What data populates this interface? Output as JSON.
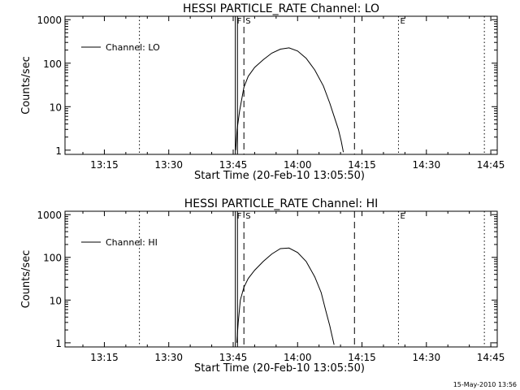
{
  "footer_timestamp": "15-May-2010 13:56",
  "chart_data": [
    {
      "type": "line",
      "title": "HESSI PARTICLE_RATE Channel: LO",
      "xlabel": "Start Time (20-Feb-10 13:05:50)",
      "ylabel": "Counts/sec",
      "xlim": [
        "13:05:50",
        "14:46:30"
      ],
      "ylim": [
        0.8,
        1200
      ],
      "y_scale": "log",
      "x_ticks": [
        {
          "label": "13:15",
          "t": "13:15:00"
        },
        {
          "label": "13:30",
          "t": "13:30:00"
        },
        {
          "label": "13:45",
          "t": "13:45:00"
        },
        {
          "label": "14:00",
          "t": "14:00:00"
        },
        {
          "label": "14:15",
          "t": "14:15:00"
        },
        {
          "label": "14:30",
          "t": "14:30:00"
        },
        {
          "label": "14:45",
          "t": "14:45:00"
        }
      ],
      "y_ticks": [
        {
          "label": "1",
          "v": 1
        },
        {
          "label": "10",
          "v": 10
        },
        {
          "label": "100",
          "v": 100
        },
        {
          "label": "1000",
          "v": 1000
        }
      ],
      "series": [
        {
          "name": "Channel: LO",
          "x": [
            "13:45:35",
            "13:45:55",
            "13:46:30",
            "13:47:30",
            "13:48:30",
            "13:50:00",
            "13:52:00",
            "13:54:00",
            "13:56:00",
            "13:58:00",
            "14:00:00",
            "14:02:00",
            "14:04:00",
            "14:06:00",
            "14:07:30",
            "14:08:30",
            "14:09:30",
            "14:10:10",
            "14:10:30",
            "14:10:40"
          ],
          "y": [
            1,
            3,
            8,
            28,
            50,
            80,
            120,
            170,
            210,
            225,
            190,
            130,
            70,
            30,
            12,
            6,
            3,
            1.6,
            1.1,
            0.9
          ]
        }
      ],
      "vlines": [
        {
          "label": "F",
          "t": "13:45:30",
          "style": "solid"
        },
        {
          "label": "",
          "t": "13:46:00",
          "style": "solid"
        },
        {
          "label": "S",
          "t": "13:47:30",
          "style": "dashed"
        },
        {
          "label": "",
          "t": "14:13:15",
          "style": "dashed"
        },
        {
          "label": "E",
          "t": "14:23:30",
          "style": "dotted"
        },
        {
          "label": "",
          "t": "13:23:10",
          "style": "dotted"
        },
        {
          "label": "",
          "t": "14:43:30",
          "style": "dotted"
        }
      ],
      "legend_position": "top-left"
    },
    {
      "type": "line",
      "title": "HESSI PARTICLE_RATE Channel: HI",
      "xlabel": "Start Time (20-Feb-10 13:05:50)",
      "ylabel": "Counts/sec",
      "xlim": [
        "13:05:50",
        "14:46:30"
      ],
      "ylim": [
        0.8,
        1200
      ],
      "y_scale": "log",
      "x_ticks": [
        {
          "label": "13:15",
          "t": "13:15:00"
        },
        {
          "label": "13:30",
          "t": "13:30:00"
        },
        {
          "label": "13:45",
          "t": "13:45:00"
        },
        {
          "label": "14:00",
          "t": "14:00:00"
        },
        {
          "label": "14:15",
          "t": "14:15:00"
        },
        {
          "label": "14:30",
          "t": "14:30:00"
        },
        {
          "label": "14:45",
          "t": "14:45:00"
        }
      ],
      "y_ticks": [
        {
          "label": "1",
          "v": 1
        },
        {
          "label": "10",
          "v": 10
        },
        {
          "label": "100",
          "v": 100
        },
        {
          "label": "1000",
          "v": 1000
        }
      ],
      "series": [
        {
          "name": "Channel: HI",
          "x": [
            "13:45:50",
            "13:46:10",
            "13:46:40",
            "13:47:30",
            "13:48:30",
            "13:50:00",
            "13:52:00",
            "13:54:00",
            "13:56:00",
            "13:58:00",
            "14:00:00",
            "14:02:00",
            "14:04:00",
            "14:05:30",
            "14:06:30",
            "14:07:30",
            "14:08:00",
            "14:08:30"
          ],
          "y": [
            1,
            3,
            10,
            20,
            32,
            50,
            80,
            120,
            160,
            165,
            130,
            80,
            35,
            15,
            6,
            2.5,
            1.5,
            0.9
          ]
        }
      ],
      "vlines": [
        {
          "label": "F",
          "t": "13:45:30",
          "style": "solid"
        },
        {
          "label": "",
          "t": "13:46:00",
          "style": "solid"
        },
        {
          "label": "S",
          "t": "13:47:30",
          "style": "dashed"
        },
        {
          "label": "",
          "t": "14:13:15",
          "style": "dashed"
        },
        {
          "label": "E",
          "t": "14:23:30",
          "style": "dotted"
        },
        {
          "label": "",
          "t": "13:23:10",
          "style": "dotted"
        },
        {
          "label": "",
          "t": "14:43:30",
          "style": "dotted"
        }
      ],
      "legend_position": "top-left"
    }
  ]
}
